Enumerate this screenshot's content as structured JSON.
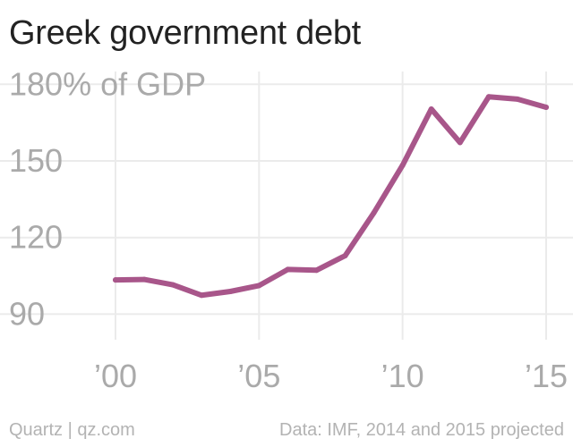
{
  "header": {
    "title": "Greek government debt"
  },
  "footer": {
    "source_left": "Quartz | qz.com",
    "source_right": "Data: IMF, 2014 and 2015 projected"
  },
  "chart_data": {
    "type": "line",
    "title": "Greek government debt",
    "xlabel": "",
    "ylabel": "",
    "x": [
      2000,
      2001,
      2002,
      2003,
      2004,
      2005,
      2006,
      2007,
      2008,
      2009,
      2010,
      2011,
      2012,
      2013,
      2014,
      2015
    ],
    "series": [
      {
        "values": [
          103.4,
          103.6,
          101.5,
          97.4,
          98.9,
          101.2,
          107.5,
          107.2,
          112.9,
          129.7,
          148.3,
          170.3,
          157.2,
          175.1,
          174.2,
          171.0
        ],
        "color": "#a8568a"
      }
    ],
    "ylim": [
      80,
      185
    ],
    "xlim": [
      1999,
      2015
    ],
    "yticks": [
      90,
      120,
      150,
      180
    ],
    "ytick_labels": [
      "90",
      "120",
      "150",
      "180% of GDP"
    ],
    "xticks": [
      2000,
      2005,
      2010,
      2015
    ],
    "xtick_labels": [
      "’00",
      "’05",
      "’10",
      "’15"
    ],
    "grid": true,
    "colors": {
      "line": "#a8568a",
      "grid": "#ebebeb",
      "tick_text": "#aaaaaa"
    }
  }
}
